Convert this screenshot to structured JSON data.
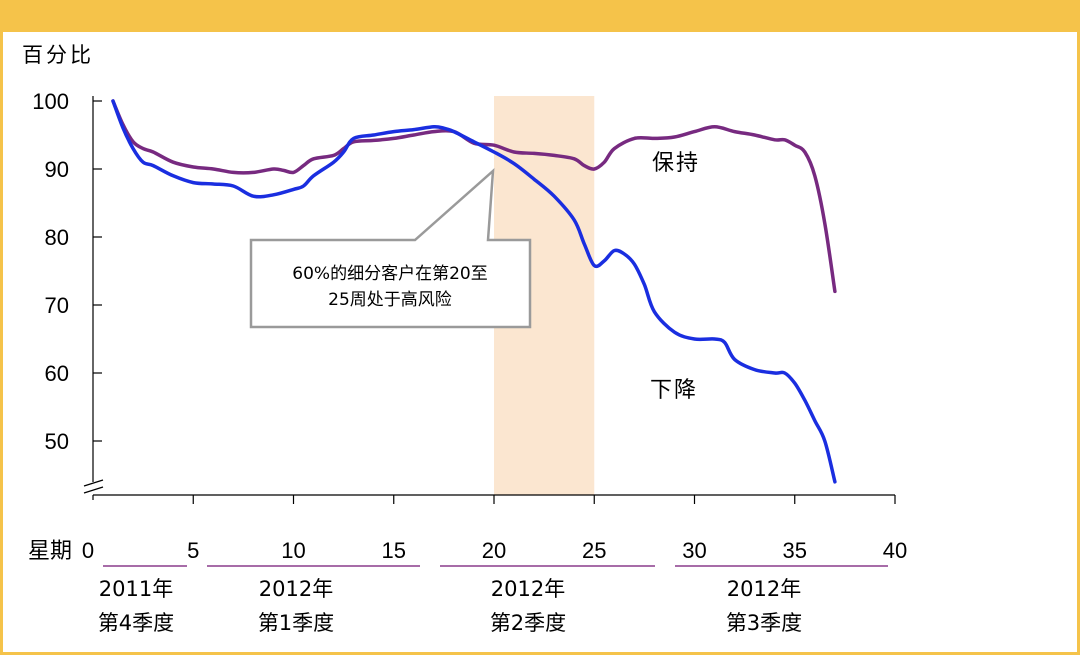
{
  "chart_data": {
    "type": "line",
    "ylabel": "百分比",
    "xlabel": "星期",
    "xlim": [
      0,
      40
    ],
    "ylim": [
      43,
      101
    ],
    "xticks": [
      0,
      5,
      10,
      15,
      20,
      25,
      30,
      35,
      40
    ],
    "yticks": [
      50,
      60,
      70,
      80,
      90,
      100
    ],
    "quarters": [
      {
        "year": "2011年",
        "quarter": "第4季度"
      },
      {
        "year": "2012年",
        "quarter": "第1季度"
      },
      {
        "year": "2012年",
        "quarter": "第2季度"
      },
      {
        "year": "2012年",
        "quarter": "第3季度"
      }
    ],
    "highlight_range": [
      20,
      25
    ],
    "annotation": {
      "line1": "60%的细分客户在第20至",
      "line2": "25周处于高风险"
    },
    "series": [
      {
        "name": "保持",
        "color": "#772a80",
        "x": [
          1,
          1.5,
          2,
          2.5,
          3,
          4,
          5,
          6,
          7,
          8,
          9,
          9.5,
          10,
          10.5,
          11,
          12,
          12.5,
          13,
          14,
          15,
          16,
          17,
          18,
          19,
          20,
          21,
          22,
          23,
          24,
          24.5,
          25,
          25.5,
          26,
          27,
          28,
          29,
          30,
          31,
          32,
          33,
          34,
          34.5,
          35,
          35.5,
          36,
          36.5,
          37
        ],
        "values": [
          100,
          96.5,
          94,
          93,
          92.5,
          91,
          90.3,
          90,
          89.5,
          89.5,
          90,
          89.8,
          89.5,
          90.5,
          91.5,
          92,
          93,
          94,
          94.2,
          94.5,
          95,
          95.5,
          95.5,
          93.8,
          93.5,
          92.5,
          92.3,
          92,
          91.5,
          90.5,
          90,
          91,
          93,
          94.5,
          94.5,
          94.7,
          95.5,
          96.2,
          95.5,
          95,
          94.3,
          94.3,
          93.5,
          92.5,
          89,
          82,
          72
        ]
      },
      {
        "name": "下降",
        "color": "#1a2ee0",
        "x": [
          1,
          1.5,
          2,
          2.5,
          3,
          4,
          5,
          6,
          7,
          8,
          9,
          10,
          10.5,
          11,
          12,
          12.5,
          13,
          14,
          15,
          16,
          17,
          17.5,
          18,
          19,
          20,
          21,
          22,
          23,
          24,
          24.5,
          25,
          25.5,
          26,
          26.5,
          27,
          27.5,
          28,
          29,
          30,
          31,
          31.5,
          32,
          33,
          34,
          34.5,
          35,
          35.5,
          36,
          36.5,
          37
        ],
        "values": [
          100,
          96,
          93,
          91,
          90.5,
          89,
          88,
          87.8,
          87.5,
          86,
          86.2,
          87,
          87.5,
          89,
          91,
          92.5,
          94.5,
          95,
          95.5,
          95.8,
          96.2,
          96,
          95.5,
          94,
          92.5,
          90.8,
          88.5,
          86,
          82.5,
          79,
          75.8,
          76.5,
          78,
          77.5,
          76,
          73,
          69,
          66,
          65,
          65,
          64.5,
          62,
          60.5,
          60,
          60,
          58.5,
          56,
          53,
          50,
          44
        ]
      }
    ],
    "grid": false,
    "legend": "inline labels"
  }
}
